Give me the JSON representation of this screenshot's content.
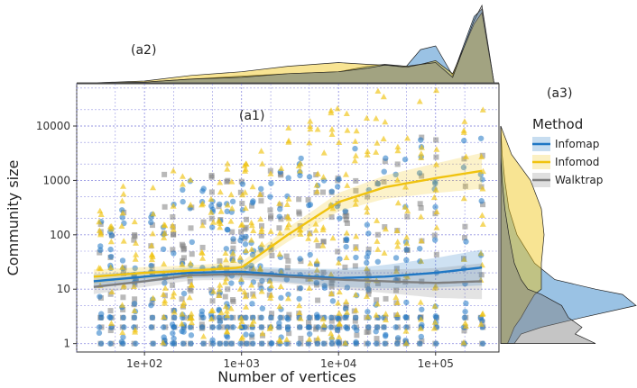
{
  "chart_data": {
    "type": "scatter",
    "panel_labels": {
      "main": "(a1)",
      "top": "(a2)",
      "right": "(a3)"
    },
    "xlabel": "Number of vertices",
    "ylabel": "Community size",
    "x_scale": "log10",
    "y_scale": "log10",
    "xlim": [
      20,
      450000
    ],
    "ylim": [
      0.7,
      60000
    ],
    "x_ticks": [
      {
        "value": 100,
        "label": "1e+02"
      },
      {
        "value": 1000,
        "label": "1e+03"
      },
      {
        "value": 10000,
        "label": "1e+04"
      },
      {
        "value": 100000,
        "label": "1e+05"
      }
    ],
    "y_ticks": [
      {
        "value": 1,
        "label": "1"
      },
      {
        "value": 10,
        "label": "10"
      },
      {
        "value": 100,
        "label": "100"
      },
      {
        "value": 1000,
        "label": "1000"
      },
      {
        "value": 10000,
        "label": "10000"
      }
    ],
    "grid": true,
    "legend": {
      "title": "Method",
      "position": "right",
      "entries": [
        {
          "name": "Infomap",
          "color": "#1f77c4"
        },
        {
          "name": "Infomod",
          "color": "#f0c30f"
        },
        {
          "name": "Walktrap",
          "color": "#7f7f7f"
        }
      ]
    },
    "networks_x": [
      35,
      45,
      60,
      80,
      120,
      160,
      200,
      250,
      300,
      400,
      500,
      600,
      700,
      800,
      1000,
      1100,
      1300,
      1600,
      2000,
      2500,
      3000,
      4000,
      5000,
      6000,
      7000,
      8500,
      10000,
      12000,
      15000,
      20000,
      25000,
      30000,
      40000,
      50000,
      70000,
      100000,
      200000,
      300000
    ],
    "series": [
      {
        "name": "Infomap",
        "color": "#1f77c4",
        "marker": "circle",
        "trend": [
          [
            30,
            14
          ],
          [
            100,
            17
          ],
          [
            300,
            20
          ],
          [
            1000,
            21
          ],
          [
            3000,
            18
          ],
          [
            10000,
            16
          ],
          [
            30000,
            17
          ],
          [
            100000,
            20
          ],
          [
            300000,
            25
          ]
        ]
      },
      {
        "name": "Infomod",
        "color": "#f0c30f",
        "marker": "triangle",
        "trend": [
          [
            30,
            17
          ],
          [
            100,
            20
          ],
          [
            300,
            22
          ],
          [
            1000,
            25
          ],
          [
            3000,
            100
          ],
          [
            10000,
            400
          ],
          [
            30000,
            750
          ],
          [
            100000,
            1100
          ],
          [
            300000,
            1500
          ]
        ]
      },
      {
        "name": "Walktrap",
        "color": "#7f7f7f",
        "marker": "square",
        "trend": [
          [
            30,
            11
          ],
          [
            100,
            14
          ],
          [
            300,
            18
          ],
          [
            1000,
            19
          ],
          [
            3000,
            17
          ],
          [
            10000,
            15
          ],
          [
            30000,
            14
          ],
          [
            100000,
            13
          ],
          [
            300000,
            14
          ]
        ]
      }
    ],
    "top_density": [
      {
        "name": "Infomap",
        "x": [
          30,
          100,
          300,
          1000,
          3000,
          10000,
          20000,
          30000,
          50000,
          70000,
          100000,
          150000,
          250000,
          300000,
          400000
        ],
        "density": [
          0,
          0.02,
          0.1,
          0.18,
          0.25,
          0.3,
          0.45,
          0.5,
          0.45,
          0.9,
          1.0,
          0.2,
          1.8,
          2.0,
          0
        ]
      },
      {
        "name": "Infomod",
        "x": [
          30,
          100,
          300,
          1000,
          3000,
          10000,
          20000,
          30000,
          50000,
          70000,
          100000,
          150000,
          250000,
          300000,
          400000
        ],
        "density": [
          0,
          0.05,
          0.2,
          0.3,
          0.45,
          0.55,
          0.5,
          0.48,
          0.45,
          0.5,
          0.6,
          0.25,
          1.6,
          1.9,
          0
        ]
      },
      {
        "name": "Walktrap",
        "x": [
          30,
          100,
          300,
          1000,
          3000,
          10000,
          20000,
          30000,
          50000,
          70000,
          100000,
          150000,
          250000,
          300000,
          400000
        ],
        "density": [
          0,
          0.02,
          0.1,
          0.15,
          0.25,
          0.3,
          0.4,
          0.48,
          0.42,
          0.5,
          0.55,
          0.15,
          1.7,
          2.1,
          0
        ]
      }
    ],
    "right_density": [
      {
        "name": "Infomap",
        "y": [
          1,
          1.5,
          2,
          3,
          5,
          8,
          10,
          15,
          30,
          100,
          300,
          1000,
          3000,
          10000
        ],
        "density": [
          0.1,
          0.15,
          0.3,
          0.6,
          1.0,
          0.9,
          0.7,
          0.4,
          0.25,
          0.12,
          0.06,
          0.03,
          0.01,
          0
        ]
      },
      {
        "name": "Infomod",
        "y": [
          1,
          1.5,
          2,
          3,
          5,
          8,
          10,
          15,
          30,
          100,
          300,
          1000,
          3000,
          10000
        ],
        "density": [
          0.05,
          0.08,
          0.1,
          0.15,
          0.2,
          0.25,
          0.3,
          0.3,
          0.3,
          0.32,
          0.3,
          0.22,
          0.08,
          0
        ]
      },
      {
        "name": "Walktrap",
        "y": [
          1,
          1.5,
          2,
          3,
          5,
          8,
          10,
          15,
          30,
          100,
          300,
          1000,
          3000,
          10000
        ],
        "density": [
          0.7,
          0.55,
          0.6,
          0.5,
          0.45,
          0.3,
          0.2,
          0.15,
          0.1,
          0.06,
          0.03,
          0.01,
          0,
          0
        ]
      }
    ]
  }
}
